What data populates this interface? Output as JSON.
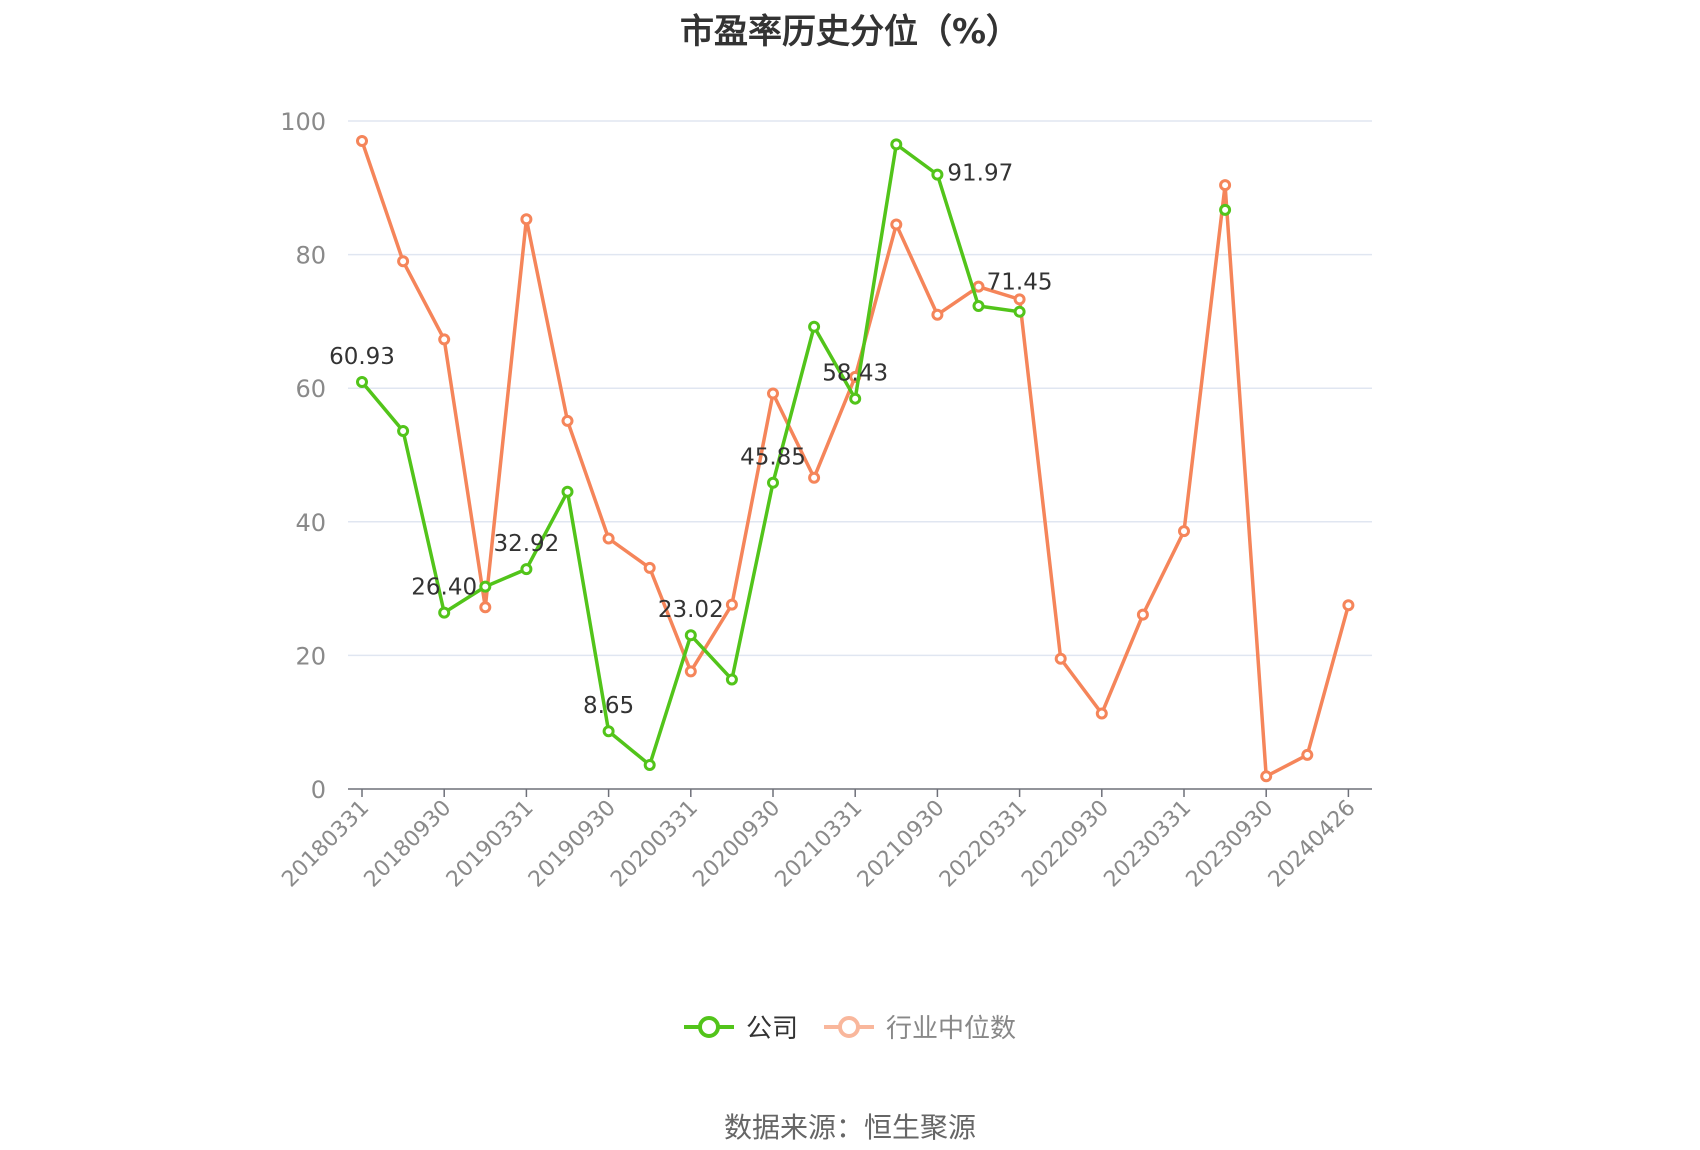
{
  "chart_data": {
    "type": "line",
    "title": "市盈率历史分位（%）",
    "x_tick_labels": [
      "20180331",
      "20180930",
      "20190331",
      "20190930",
      "20200331",
      "20200930",
      "20210331",
      "20210930",
      "20220331",
      "20220930",
      "20230331",
      "20230930",
      "20240426"
    ],
    "x": [
      "20180331",
      "20180630",
      "20180930",
      "20181231",
      "20190331",
      "20190630",
      "20190930",
      "20191231",
      "20200331",
      "20200630",
      "20200930",
      "20201231",
      "20210331",
      "20210630",
      "20210930",
      "20211231",
      "20220331",
      "20220630",
      "20220930",
      "20221231",
      "20230331",
      "20230630",
      "20230930",
      "20231231",
      "20240426"
    ],
    "ylim": [
      0,
      100
    ],
    "y_ticks": [
      0,
      20,
      40,
      60,
      80,
      100
    ],
    "grid": true,
    "legend_position": "bottom-center",
    "series": [
      {
        "name": "公司",
        "color": "#52c41a",
        "values": [
          60.93,
          53.6,
          26.4,
          30.3,
          32.92,
          44.5,
          8.65,
          3.6,
          23.02,
          16.4,
          45.85,
          69.2,
          58.43,
          96.5,
          91.97,
          72.3,
          71.45,
          null,
          null,
          null,
          null,
          86.7,
          null,
          null,
          null
        ],
        "labeled_points": [
          {
            "index": 0,
            "text": "60.93"
          },
          {
            "index": 2,
            "text": "26.40"
          },
          {
            "index": 4,
            "text": "32.92"
          },
          {
            "index": 6,
            "text": "8.65"
          },
          {
            "index": 8,
            "text": "23.02"
          },
          {
            "index": 10,
            "text": "45.85"
          },
          {
            "index": 12,
            "text": "58.43"
          },
          {
            "index": 14,
            "text": "91.97"
          },
          {
            "index": 16,
            "text": "71.45"
          }
        ]
      },
      {
        "name": "行业中位数",
        "color": "#f5855a",
        "values": [
          97.0,
          79.0,
          67.3,
          27.2,
          85.3,
          55.1,
          37.5,
          33.1,
          17.6,
          27.6,
          59.2,
          46.6,
          61.7,
          84.5,
          71.0,
          75.2,
          73.3,
          19.5,
          11.3,
          26.1,
          38.6,
          90.4,
          1.9,
          5.1,
          27.5
        ]
      }
    ]
  },
  "legend": {
    "company_label": "公司",
    "industry_label": "行业中位数"
  },
  "footer": {
    "source": "数据来源：恒生聚源"
  }
}
